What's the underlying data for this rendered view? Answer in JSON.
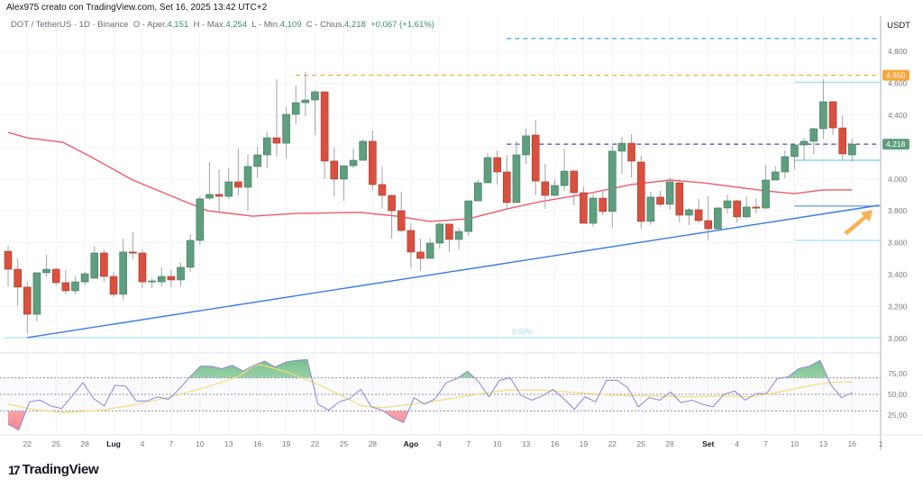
{
  "header": {
    "credit": "Alex975 creato con TradingView.com, Set 16, 2025 13:42 UTC+2"
  },
  "legend": {
    "symbol": "DOT / TetherUS · 1D · Binance",
    "open_label": "O - Aper.",
    "open": "4,151",
    "high_label": "H - Max.",
    "high": "4,254",
    "low_label": "L - Min.",
    "low": "4,109",
    "close_label": "C - Chius.",
    "close": "4,218",
    "change": "+0,067 (+1,61%)"
  },
  "price_axis": {
    "unit": "USDT",
    "ticks": [
      {
        "v": 4800,
        "t": "4,800"
      },
      {
        "v": 4600,
        "t": "4,600"
      },
      {
        "v": 4400,
        "t": "4,400"
      },
      {
        "v": 4000,
        "t": "4,000"
      },
      {
        "v": 3800,
        "t": "3,800"
      },
      {
        "v": 3600,
        "t": "3,600"
      },
      {
        "v": 3400,
        "t": "3,400"
      },
      {
        "v": 3200,
        "t": "3,200"
      },
      {
        "v": 3000,
        "t": "3,000"
      }
    ],
    "badges": [
      {
        "v": 4650,
        "t": "4,650",
        "color": "#f7a637"
      },
      {
        "v": 4218,
        "t": "4,218",
        "color": "#5f9e7f"
      }
    ]
  },
  "rsi_axis": {
    "ticks": [
      {
        "v": 75,
        "t": "75,00"
      },
      {
        "v": 50,
        "t": "50,00"
      },
      {
        "v": 25,
        "t": "25,00"
      }
    ],
    "levels": [
      70,
      50,
      30
    ]
  },
  "time_axis": [
    {
      "i": 3,
      "t": "22"
    },
    {
      "i": 6,
      "t": "25"
    },
    {
      "i": 9,
      "t": "28"
    },
    {
      "i": 12,
      "t": "Lug",
      "bold": true
    },
    {
      "i": 15,
      "t": "4"
    },
    {
      "i": 18,
      "t": "7"
    },
    {
      "i": 21,
      "t": "10"
    },
    {
      "i": 24,
      "t": "13"
    },
    {
      "i": 27,
      "t": "16"
    },
    {
      "i": 30,
      "t": "19"
    },
    {
      "i": 33,
      "t": "22"
    },
    {
      "i": 36,
      "t": "25"
    },
    {
      "i": 39,
      "t": "28"
    },
    {
      "i": 43,
      "t": "Ago",
      "bold": true
    },
    {
      "i": 46,
      "t": "4"
    },
    {
      "i": 49,
      "t": "7"
    },
    {
      "i": 52,
      "t": "10"
    },
    {
      "i": 55,
      "t": "13"
    },
    {
      "i": 58,
      "t": "16"
    },
    {
      "i": 61,
      "t": "19"
    },
    {
      "i": 64,
      "t": "22"
    },
    {
      "i": 67,
      "t": "25"
    },
    {
      "i": 70,
      "t": "28"
    },
    {
      "i": 74,
      "t": "Set",
      "bold": true
    },
    {
      "i": 77,
      "t": "4"
    },
    {
      "i": 80,
      "t": "7"
    },
    {
      "i": 83,
      "t": "10"
    },
    {
      "i": 86,
      "t": "13"
    },
    {
      "i": 89,
      "t": "16"
    },
    {
      "i": 92,
      "t": "1"
    }
  ],
  "colors": {
    "up": "#5f9e7f",
    "down": "#d9503f",
    "ma": "#ee5a66",
    "trend": "#3d7be0",
    "rsi": "#8d86d9",
    "rsi_ma": "#f6dc7a",
    "fib": "#8fd8e6"
  },
  "lines": {
    "trend": {
      "from": [
        3,
        3006
      ],
      "to": [
        91.8,
        3835
      ]
    },
    "horizontal": [
      {
        "v": 4880,
        "from": 53,
        "color": "#2a9be0",
        "dash": true
      },
      {
        "v": 4650,
        "from": 31,
        "color": "#f7a637",
        "dash": true
      },
      {
        "v": 4218,
        "from": 53,
        "color": "#4e45a8",
        "dash": true
      },
      {
        "v": 4607,
        "from": 83,
        "color": "#8fd8e6",
        "dash": false
      },
      {
        "v": 4117,
        "from": 83,
        "color": "#4fc3da",
        "dash": false
      },
      {
        "v": 3830,
        "from": 83,
        "color": "#3d7be0",
        "dash": false
      },
      {
        "v": 3615,
        "from": 83,
        "color": "#8fd8e6",
        "dash": false
      },
      {
        "v": 3006,
        "from": 0.5,
        "color": "#a5e0ec",
        "dash": false
      }
    ],
    "fib_label": "0,00%"
  },
  "chart_data": {
    "type": "candlestick",
    "title": "DOT / TetherUS 1D",
    "ylabel": "USDT",
    "ylim": [
      2900,
      4950
    ],
    "candles": [
      [
        3547,
        3581,
        3327,
        3434
      ],
      [
        3434,
        3502,
        3203,
        3322
      ],
      [
        3322,
        3355,
        3034,
        3152
      ],
      [
        3152,
        3412,
        3107,
        3412
      ],
      [
        3412,
        3525,
        3389,
        3434
      ],
      [
        3434,
        3446,
        3333,
        3350
      ],
      [
        3350,
        3429,
        3277,
        3299
      ],
      [
        3299,
        3389,
        3277,
        3355
      ],
      [
        3355,
        3418,
        3333,
        3406
      ],
      [
        3378,
        3581,
        3378,
        3536
      ],
      [
        3536,
        3558,
        3355,
        3389
      ],
      [
        3389,
        3418,
        3260,
        3277
      ],
      [
        3277,
        3626,
        3243,
        3542
      ],
      [
        3542,
        3666,
        3497,
        3536
      ],
      [
        3536,
        3558,
        3316,
        3355
      ],
      [
        3355,
        3378,
        3316,
        3361
      ],
      [
        3355,
        3446,
        3327,
        3389
      ],
      [
        3389,
        3434,
        3322,
        3367
      ],
      [
        3367,
        3474,
        3327,
        3446
      ],
      [
        3446,
        3654,
        3418,
        3615
      ],
      [
        3615,
        3891,
        3587,
        3875
      ],
      [
        3880,
        4106,
        3869,
        3903
      ],
      [
        3903,
        4061,
        3796,
        3891
      ],
      [
        3891,
        4066,
        3875,
        3982
      ],
      [
        3982,
        4191,
        3897,
        3948
      ],
      [
        3948,
        4151,
        3801,
        4078
      ],
      [
        4078,
        4202,
        4010,
        4151
      ],
      [
        4151,
        4298,
        4066,
        4258
      ],
      [
        4258,
        4625,
        4140,
        4224
      ],
      [
        4224,
        4450,
        4128,
        4405
      ],
      [
        4405,
        4586,
        4343,
        4478
      ],
      [
        4478,
        4670,
        4394,
        4495
      ],
      [
        4495,
        4557,
        4275,
        4546
      ],
      [
        4546,
        4546,
        3999,
        4112
      ],
      [
        4112,
        4196,
        3891,
        3999
      ],
      [
        3999,
        4083,
        3863,
        4083
      ],
      [
        4083,
        4191,
        4066,
        4117
      ],
      [
        4117,
        4247,
        4117,
        4236
      ],
      [
        4236,
        4303,
        3925,
        3965
      ],
      [
        3965,
        4078,
        3812,
        3897
      ],
      [
        3897,
        3903,
        3626,
        3801
      ],
      [
        3801,
        3920,
        3666,
        3677
      ],
      [
        3677,
        3722,
        3440,
        3542
      ],
      [
        3542,
        3626,
        3423,
        3502
      ],
      [
        3502,
        3626,
        3502,
        3598
      ],
      [
        3598,
        3728,
        3564,
        3717
      ],
      [
        3717,
        3717,
        3542,
        3621
      ],
      [
        3621,
        3694,
        3558,
        3671
      ],
      [
        3671,
        3863,
        3643,
        3863
      ],
      [
        3863,
        3993,
        3863,
        3976
      ],
      [
        3976,
        4162,
        3976,
        4134
      ],
      [
        4134,
        4179,
        3965,
        4044
      ],
      [
        4044,
        4151,
        3812,
        3852
      ],
      [
        3852,
        4236,
        3852,
        4151
      ],
      [
        4151,
        4315,
        4095,
        4270
      ],
      [
        4275,
        4371,
        3897,
        3987
      ],
      [
        3982,
        4095,
        3812,
        3897
      ],
      [
        3897,
        3993,
        3891,
        3959
      ],
      [
        3959,
        4191,
        3925,
        4049
      ],
      [
        4049,
        4061,
        3835,
        3914
      ],
      [
        3914,
        3953,
        3722,
        3722
      ],
      [
        3722,
        3908,
        3700,
        3880
      ],
      [
        3880,
        3920,
        3773,
        3796
      ],
      [
        3796,
        4207,
        3694,
        4174
      ],
      [
        4174,
        4264,
        4032,
        4224
      ],
      [
        4224,
        4281,
        4010,
        4112
      ],
      [
        4106,
        4145,
        3688,
        3734
      ],
      [
        3734,
        3920,
        3711,
        3886
      ],
      [
        3886,
        3925,
        3829,
        3841
      ],
      [
        3841,
        4010,
        3807,
        3982
      ],
      [
        3976,
        3999,
        3728,
        3773
      ],
      [
        3773,
        3818,
        3711,
        3807
      ],
      [
        3807,
        3875,
        3722,
        3739
      ],
      [
        3739,
        3891,
        3615,
        3688
      ],
      [
        3688,
        3824,
        3683,
        3818
      ],
      [
        3818,
        3903,
        3784,
        3863
      ],
      [
        3863,
        3869,
        3728,
        3762
      ],
      [
        3762,
        3891,
        3756,
        3824
      ],
      [
        3824,
        3880,
        3784,
        3818
      ],
      [
        3818,
        4089,
        3812,
        3993
      ],
      [
        3993,
        4078,
        3993,
        4044
      ],
      [
        4044,
        4179,
        4004,
        4140
      ],
      [
        4140,
        4224,
        4061,
        4213
      ],
      [
        4213,
        4258,
        4117,
        4236
      ],
      [
        4236,
        4320,
        4157,
        4315
      ],
      [
        4315,
        4625,
        4253,
        4484
      ],
      [
        4484,
        4490,
        4275,
        4320
      ],
      [
        4320,
        4399,
        4117,
        4157
      ],
      [
        4151,
        4254,
        4109,
        4218
      ]
    ],
    "ma": [
      [
        1,
        4292
      ],
      [
        3,
        4258
      ],
      [
        6.7,
        4230
      ],
      [
        9.6,
        4140
      ],
      [
        14,
        3993
      ],
      [
        19,
        3869
      ],
      [
        21.8,
        3801
      ],
      [
        26.5,
        3767
      ],
      [
        31,
        3784
      ],
      [
        37.7,
        3790
      ],
      [
        41.5,
        3767
      ],
      [
        45,
        3734
      ],
      [
        49,
        3750
      ],
      [
        53,
        3812
      ],
      [
        56.5,
        3858
      ],
      [
        61,
        3903
      ],
      [
        66,
        3965
      ],
      [
        70,
        3993
      ],
      [
        73.5,
        3976
      ],
      [
        77,
        3948
      ],
      [
        80,
        3925
      ],
      [
        83,
        3908
      ],
      [
        86,
        3931
      ],
      [
        89,
        3931
      ]
    ],
    "rsi": [
      14,
      7,
      41,
      43,
      36,
      33,
      48,
      64,
      45,
      36,
      61,
      60,
      42,
      42,
      47,
      44,
      56,
      71,
      84,
      84,
      81,
      85,
      78,
      85,
      90,
      83,
      89,
      91,
      92,
      38,
      31,
      41,
      45,
      56,
      35,
      31,
      22,
      16,
      46,
      38,
      45,
      64,
      69,
      78,
      66,
      47,
      67,
      70,
      49,
      43,
      48,
      56,
      45,
      32,
      47,
      41,
      67,
      67,
      58,
      35,
      46,
      43,
      53,
      40,
      43,
      38,
      35,
      50,
      54,
      43,
      51,
      51,
      69,
      71,
      81,
      84,
      91,
      62,
      46,
      52
    ],
    "rsi_ma": [
      [
        1,
        38
      ],
      [
        5,
        31
      ],
      [
        9,
        28
      ],
      [
        14,
        31
      ],
      [
        19,
        38
      ],
      [
        24,
        48
      ],
      [
        29,
        60
      ],
      [
        33,
        72
      ],
      [
        35,
        84
      ],
      [
        36,
        86
      ],
      [
        40,
        76
      ],
      [
        44,
        62
      ],
      [
        48,
        45
      ],
      [
        50,
        36
      ],
      [
        53,
        34
      ],
      [
        57,
        38
      ],
      [
        61,
        43
      ],
      [
        66,
        50
      ],
      [
        70,
        55
      ],
      [
        75,
        55
      ],
      [
        80,
        52
      ],
      [
        85,
        49
      ],
      [
        90,
        48
      ],
      [
        95,
        47
      ],
      [
        100,
        48
      ],
      [
        104,
        47
      ],
      [
        108,
        53
      ],
      [
        113,
        62
      ],
      [
        116,
        65
      ],
      [
        118,
        65
      ]
    ]
  }
}
